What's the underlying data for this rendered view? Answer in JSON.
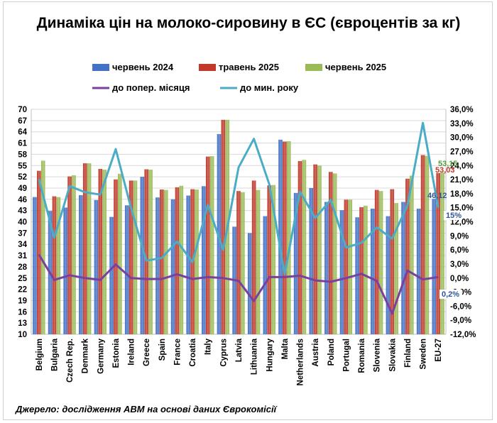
{
  "chart_data": {
    "type": "bar",
    "title": "Динаміка цін на молоко-сировину в ЄС (євроцентів за кг)",
    "source": "Джерело: дослідження АВМ на основі даних Єврокомісії",
    "categories": [
      "Belgium",
      "Bulgaria",
      "Czech Rep.",
      "Denmark",
      "Germany",
      "Estonia",
      "Ireland",
      "Greece",
      "Spain",
      "France",
      "Croatia",
      "Italy",
      "Cyprus",
      "Latvia",
      "Lithuania",
      "Hungary",
      "Malta",
      "Netherlands",
      "Austria",
      "Poland",
      "Portugal",
      "Romania",
      "Slovenia",
      "Slovakia",
      "Finland",
      "Sweden",
      "EU-27"
    ],
    "y_left": {
      "min": 10,
      "max": 70,
      "ticks": [
        "10",
        "13",
        "16",
        "19",
        "22",
        "25",
        "28",
        "31",
        "34",
        "37",
        "40",
        "43",
        "46",
        "49",
        "52",
        "55",
        "58",
        "61",
        "64",
        "67",
        "70"
      ]
    },
    "y_right": {
      "min": -12,
      "max": 36,
      "ticks": [
        "-12,0%",
        "-9,0%",
        "-6,0%",
        "-3,0%",
        "0,0%",
        "3,0%",
        "6,0%",
        "9,0%",
        "12,0%",
        "15,0%",
        "18,0%",
        "21,0%",
        "24,0%",
        "27,0%",
        "30,0%",
        "33,0%",
        "36,0%"
      ]
    },
    "grid": true,
    "legend_position": "top",
    "series": [
      {
        "name": "червень 2024",
        "type": "bar",
        "axis": "left",
        "color": "#4472c4",
        "values": [
          46.6,
          42.9,
          43.8,
          47.1,
          45.8,
          41.3,
          44.4,
          52.0,
          46.5,
          46.0,
          47.0,
          49.5,
          63.4,
          38.7,
          37.0,
          41.5,
          61.9,
          47.7,
          49.0,
          45.3,
          43.1,
          41.2,
          43.5,
          41.5,
          45.3,
          43.5,
          46.12
        ]
      },
      {
        "name": "травень 2025",
        "type": "bar",
        "axis": "left",
        "color": "#c0392b",
        "values": [
          53.6,
          46.8,
          52.1,
          55.6,
          54.1,
          51.3,
          51.0,
          54.0,
          48.6,
          49.2,
          48.7,
          57.4,
          67.2,
          48.2,
          51.0,
          49.7,
          61.4,
          56.2,
          55.3,
          53.3,
          45.9,
          43.9,
          48.5,
          48.7,
          51.5,
          57.8,
          53.03
        ]
      },
      {
        "name": "червень 2025",
        "type": "bar",
        "axis": "left",
        "color": "#9bbb59",
        "values": [
          56.3,
          46.6,
          52.4,
          55.6,
          53.9,
          52.8,
          51.0,
          53.9,
          48.5,
          49.6,
          48.6,
          57.5,
          67.2,
          47.9,
          48.5,
          49.8,
          61.5,
          56.5,
          55.0,
          52.9,
          45.9,
          44.3,
          48.2,
          45.0,
          52.3,
          57.6,
          53.15
        ]
      },
      {
        "name": "до попер. місяця",
        "type": "line",
        "axis": "right",
        "color": "#7b3f9e",
        "values": [
          5.0,
          -0.4,
          0.6,
          0.0,
          -0.4,
          2.9,
          0.0,
          -0.2,
          -0.2,
          0.8,
          -0.2,
          0.2,
          0.0,
          -0.6,
          -4.9,
          0.2,
          0.2,
          0.5,
          -0.5,
          -0.8,
          0.0,
          0.9,
          -0.6,
          -7.6,
          1.6,
          -0.3,
          0.2
        ]
      },
      {
        "name": "до мин. року",
        "type": "line",
        "axis": "right",
        "color": "#4bacc6",
        "values": [
          21.1,
          8.6,
          19.6,
          18.3,
          17.8,
          27.5,
          14.9,
          3.7,
          4.3,
          7.8,
          3.4,
          15.6,
          6.0,
          23.6,
          29.7,
          20.0,
          0.8,
          18.4,
          12.8,
          16.7,
          6.5,
          7.5,
          10.8,
          8.4,
          15.5,
          33.1,
          15.0
        ]
      }
    ],
    "annotations": [
      "53,15",
      "53,03",
      "46,12",
      "15%",
      "0,2%"
    ]
  }
}
